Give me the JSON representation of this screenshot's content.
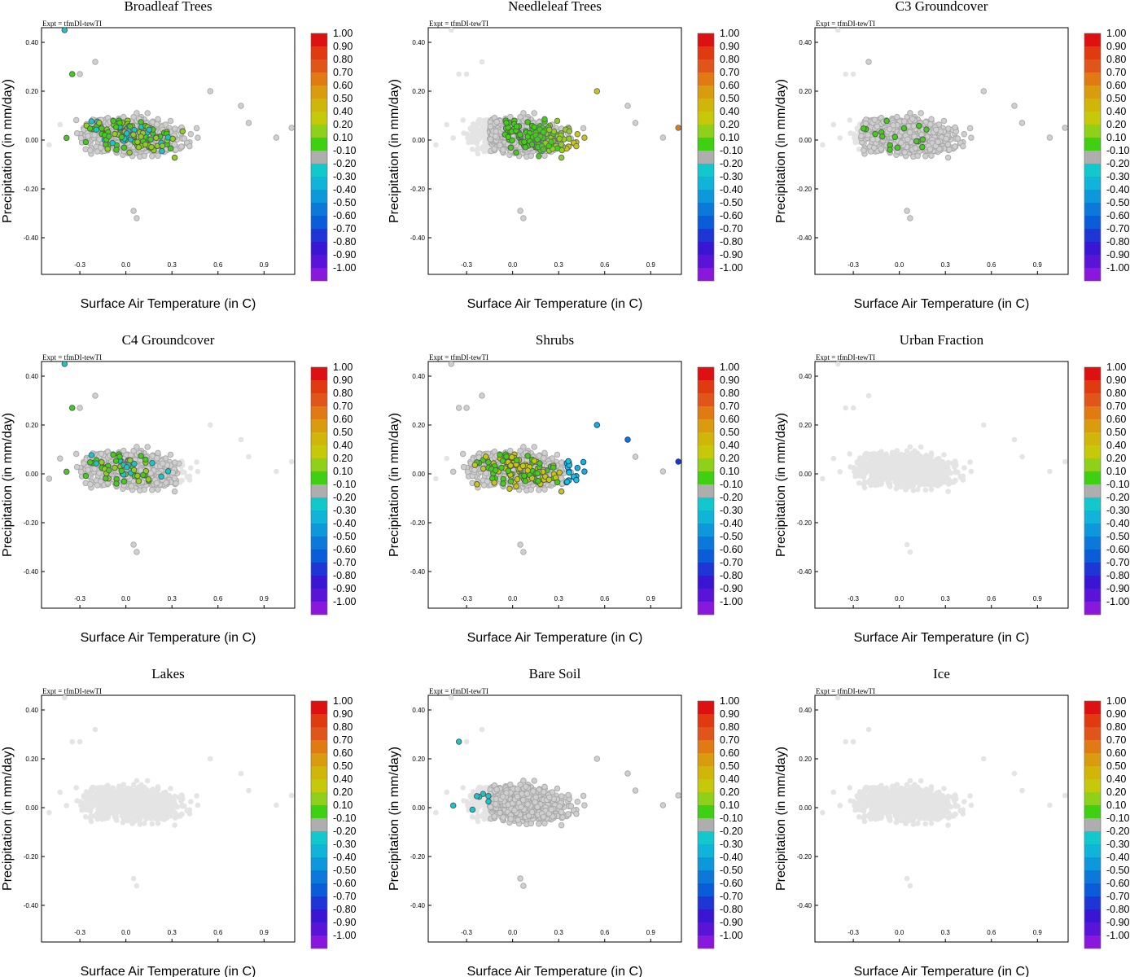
{
  "chart_data": {
    "type": "scatter",
    "expt_label": "Expt = tfmDI-tewTI",
    "xlabel": "Surface Air Temperature (in C)",
    "ylabel": "Precipitation (in mm/day)",
    "xlim": [
      -0.55,
      1.1
    ],
    "ylim": [
      -0.55,
      0.46
    ],
    "xticks": [
      -0.3,
      0.0,
      0.3,
      0.6,
      0.9
    ],
    "xtick_labels": [
      "-0.3",
      "0.0",
      "0.3",
      "0.6",
      "0.9"
    ],
    "yticks": [
      0.4,
      0.2,
      0.0,
      -0.2,
      -0.4
    ],
    "ytick_labels": [
      "0.40",
      "0.20",
      "0.00",
      "-0.20",
      "-0.40"
    ],
    "colorbar": {
      "labels": [
        "1.00",
        "0.90",
        "0.80",
        "0.70",
        "0.60",
        "0.50",
        "0.40",
        "0.20",
        "0.10",
        "-0.10",
        "-0.20",
        "-0.30",
        "-0.40",
        "-0.50",
        "-0.60",
        "-0.70",
        "-0.80",
        "-0.90",
        "-1.00"
      ],
      "colors": [
        "#dd1111",
        "#e03a10",
        "#e0561a",
        "#e07a12",
        "#d99c0e",
        "#cfb609",
        "#c6c90a",
        "#8fd01a",
        "#3fd013",
        "#aeaeae",
        "#13c8cc",
        "#11b4d9",
        "#0e98dc",
        "#0c78d9",
        "#0a5cd8",
        "#1f35d5",
        "#3a16d4",
        "#5a14d8",
        "#8a18dc"
      ]
    },
    "panels": [
      {
        "title": "Broadleaf Trees",
        "scheme": "broadleaf",
        "accent": "#55cc22"
      },
      {
        "title": "Needleleaf Trees",
        "scheme": "needleleaf",
        "accent": "#bcd418"
      },
      {
        "title": "C3 Groundcover",
        "scheme": "c3",
        "accent": "#33cc22"
      },
      {
        "title": "C4 Groundcover",
        "scheme": "c4",
        "accent": "#66cc22"
      },
      {
        "title": "Shrubs",
        "scheme": "shrubs",
        "accent": "#11aadd"
      },
      {
        "title": "Urban Fraction",
        "scheme": "none",
        "accent": "#e2e2e2"
      },
      {
        "title": "Lakes",
        "scheme": "none",
        "accent": "#e2e2e2"
      },
      {
        "title": "Bare Soil",
        "scheme": "baresoil",
        "accent": "#aaaaaa"
      },
      {
        "title": "Ice",
        "scheme": "none",
        "accent": "#e2e2e2"
      }
    ]
  }
}
